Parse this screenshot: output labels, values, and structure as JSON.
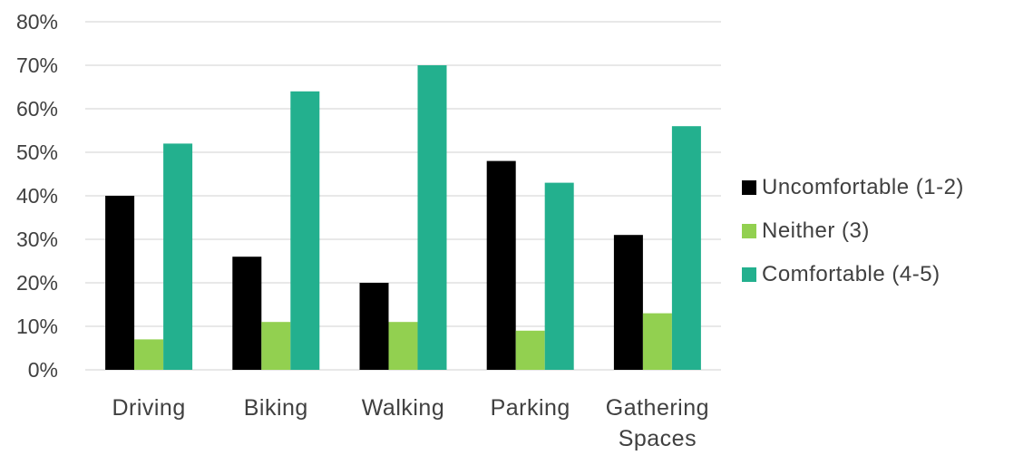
{
  "chart_data": {
    "type": "bar",
    "categories": [
      "Driving",
      "Biking",
      "Walking",
      "Parking",
      "Gathering Spaces"
    ],
    "series": [
      {
        "name": "Uncomfortable (1-2)",
        "color": "#000000",
        "values": [
          0.4,
          0.26,
          0.2,
          0.48,
          0.31
        ]
      },
      {
        "name": "Neither (3)",
        "color": "#92d050",
        "values": [
          0.07,
          0.11,
          0.11,
          0.09,
          0.13
        ]
      },
      {
        "name": "Comfortable (4-5)",
        "color": "#23b08e",
        "values": [
          0.52,
          0.64,
          0.7,
          0.43,
          0.56
        ]
      }
    ],
    "yticks": [
      "0%",
      "10%",
      "20%",
      "30%",
      "40%",
      "50%",
      "60%",
      "70%",
      "80%"
    ],
    "ylim": [
      0,
      0.8
    ],
    "grid": true,
    "legend_position": "right"
  }
}
